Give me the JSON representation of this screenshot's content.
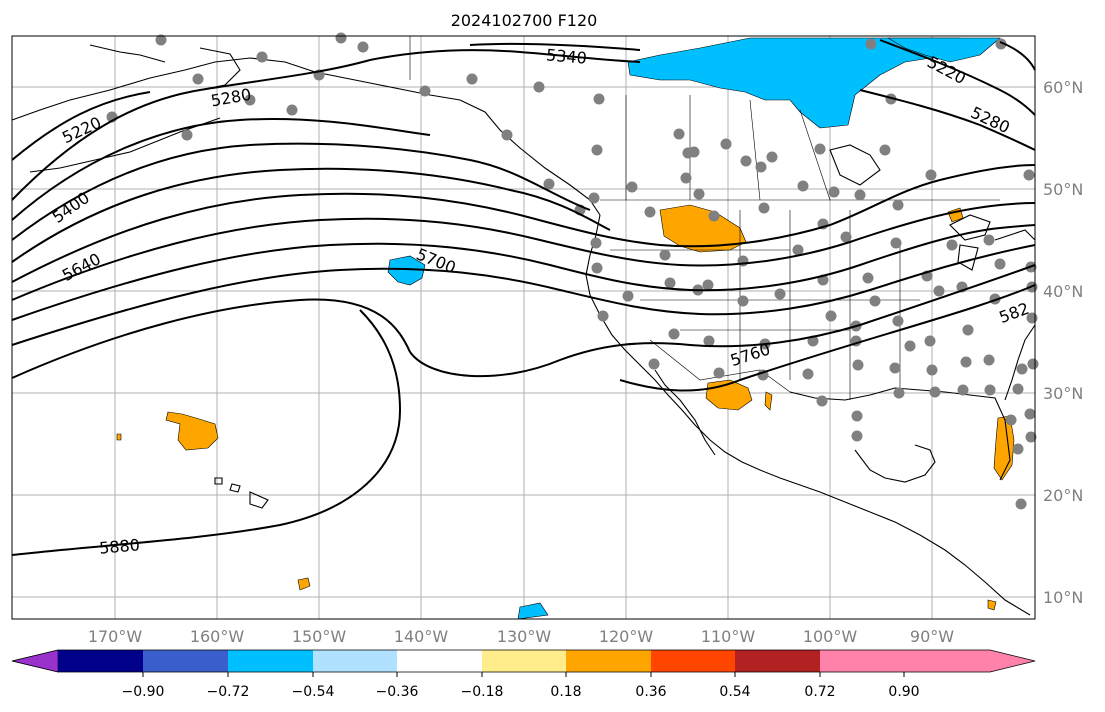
{
  "title": "2024102700 F120",
  "lat_labels": [
    "60°N",
    "50°N",
    "40°N",
    "30°N",
    "20°N",
    "10°N"
  ],
  "lon_labels": [
    "170°W",
    "160°W",
    "150°W",
    "140°W",
    "130°W",
    "120°W",
    "110°W",
    "100°W",
    "90°W"
  ],
  "contour_labels": [
    "5220",
    "5280",
    "5340",
    "5400",
    "5640",
    "5700",
    "5760",
    "5880",
    "5220",
    "5280",
    "582"
  ],
  "colorbar": {
    "ticks": [
      "−0.90",
      "−0.72",
      "−0.54",
      "−0.36",
      "−0.18",
      "0.18",
      "0.36",
      "0.54",
      "0.72",
      "0.90"
    ],
    "colors": [
      "#9932cc",
      "#00008b",
      "#3a5fcd",
      "#00bfff",
      "#b0e2ff",
      "#ffffff",
      "#ffec8b",
      "#ffa500",
      "#ff4500",
      "#b22222",
      "#ff82ab"
    ]
  },
  "colors": {
    "negative_fill": "#00bfff",
    "positive_fill": "#ffa500",
    "station_dot": "#808080",
    "gridline": "#b0b0b0"
  }
}
